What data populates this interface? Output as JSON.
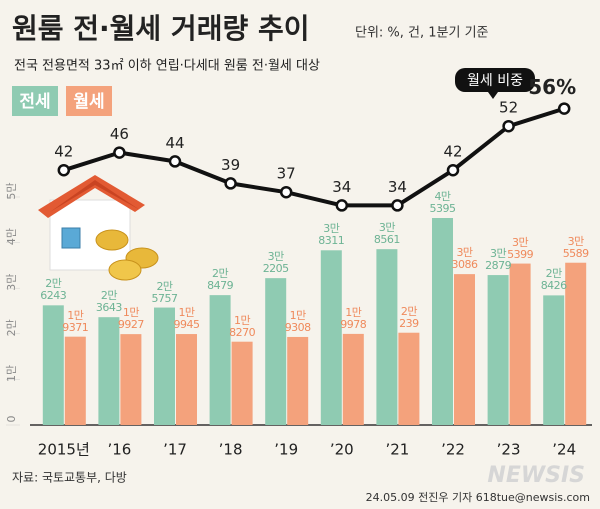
{
  "chart_data": {
    "type": "bar",
    "title": "원룸 전·월세 거래량 추이",
    "unit_note": "단위: %, 건, 1분기 기준",
    "subtitle": "전국 전용면적 33㎡ 이하 연립·다세대 원룸 전·월세 대상",
    "categories": [
      "2015년",
      "’16",
      "’17",
      "’18",
      "’19",
      "’20",
      "’21",
      "’22",
      "’23",
      "’24"
    ],
    "series": [
      {
        "name": "전세",
        "color": "#8fcbb2",
        "label_color": "#6db394",
        "values": [
          26243,
          23643,
          25757,
          28479,
          32205,
          38311,
          38561,
          45395,
          32879,
          28426
        ],
        "value_labels": [
          "2만\n6243",
          "2만\n3643",
          "2만\n5757",
          "2만\n8479",
          "3만\n2205",
          "3만\n8311",
          "3만\n8561",
          "4만\n5395",
          "3만\n2879",
          "2만\n8426"
        ]
      },
      {
        "name": "월세",
        "color": "#f4a27c",
        "label_color": "#ef8a5c",
        "values": [
          19371,
          19927,
          19945,
          18270,
          19308,
          19978,
          20239,
          33086,
          35399,
          35589
        ],
        "value_labels": [
          "1만\n9371",
          "1만\n9927",
          "1만\n9945",
          "1만\n8270",
          "1만\n9308",
          "1만\n9978",
          "2만\n239",
          "3만\n3086",
          "3만\n5399",
          "3만\n5589"
        ]
      },
      {
        "name": "월세 비중",
        "type": "line",
        "axis": "y2",
        "color": "#111111",
        "values": [
          42,
          46,
          44,
          39,
          37,
          34,
          34,
          42,
          52,
          56
        ],
        "value_labels": [
          "42",
          "46",
          "44",
          "39",
          "37",
          "34",
          "34",
          "42",
          "52",
          "56%"
        ]
      }
    ],
    "ylim": [
      0,
      50000
    ],
    "yticks": [
      0,
      {
        "value": 10000,
        "label": "1만"
      },
      {
        "value": 20000,
        "label": "2만"
      },
      {
        "value": 30000,
        "label": "3만"
      },
      {
        "value": 40000,
        "label": "4만"
      },
      {
        "value": 50000,
        "label": "5만"
      }
    ],
    "y2lim": [
      10,
      60
    ],
    "source": "자료: 국토교통부, 다방",
    "credit": "24.05.09 전진우 기자 618tue@newsis.com",
    "logo": "NEWSIS"
  }
}
